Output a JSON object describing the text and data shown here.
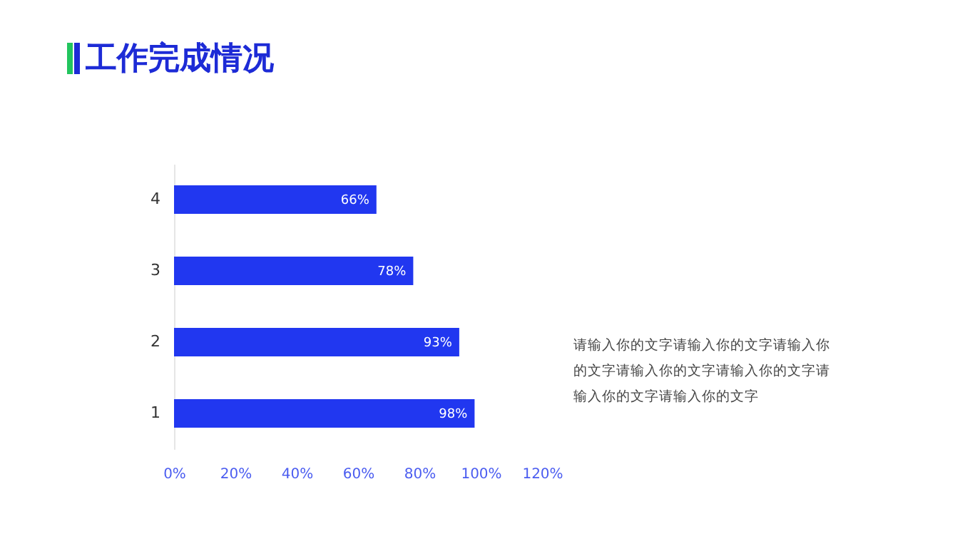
{
  "chart_data": {
    "type": "bar",
    "orientation": "horizontal",
    "title": "工作完成情况",
    "categories": [
      "4",
      "3",
      "2",
      "1"
    ],
    "values": [
      66,
      78,
      93,
      98
    ],
    "value_labels": [
      "66%",
      "78%",
      "93%",
      "98%"
    ],
    "color": "#2137f0",
    "xlim": [
      0,
      120
    ],
    "xticks": [
      {
        "value": 0,
        "label": "0%"
      },
      {
        "value": 20,
        "label": "20%"
      },
      {
        "value": 40,
        "label": "40%"
      },
      {
        "value": 60,
        "label": "60%"
      },
      {
        "value": 80,
        "label": "80%"
      },
      {
        "value": 100,
        "label": "100%"
      },
      {
        "value": 120,
        "label": "120%"
      }
    ],
    "annotations": [
      "请输入你的文字请输入你的文字请输入你的文字请输入你的文字请输入你的文字请输入你的文字请输入你的文字"
    ]
  }
}
